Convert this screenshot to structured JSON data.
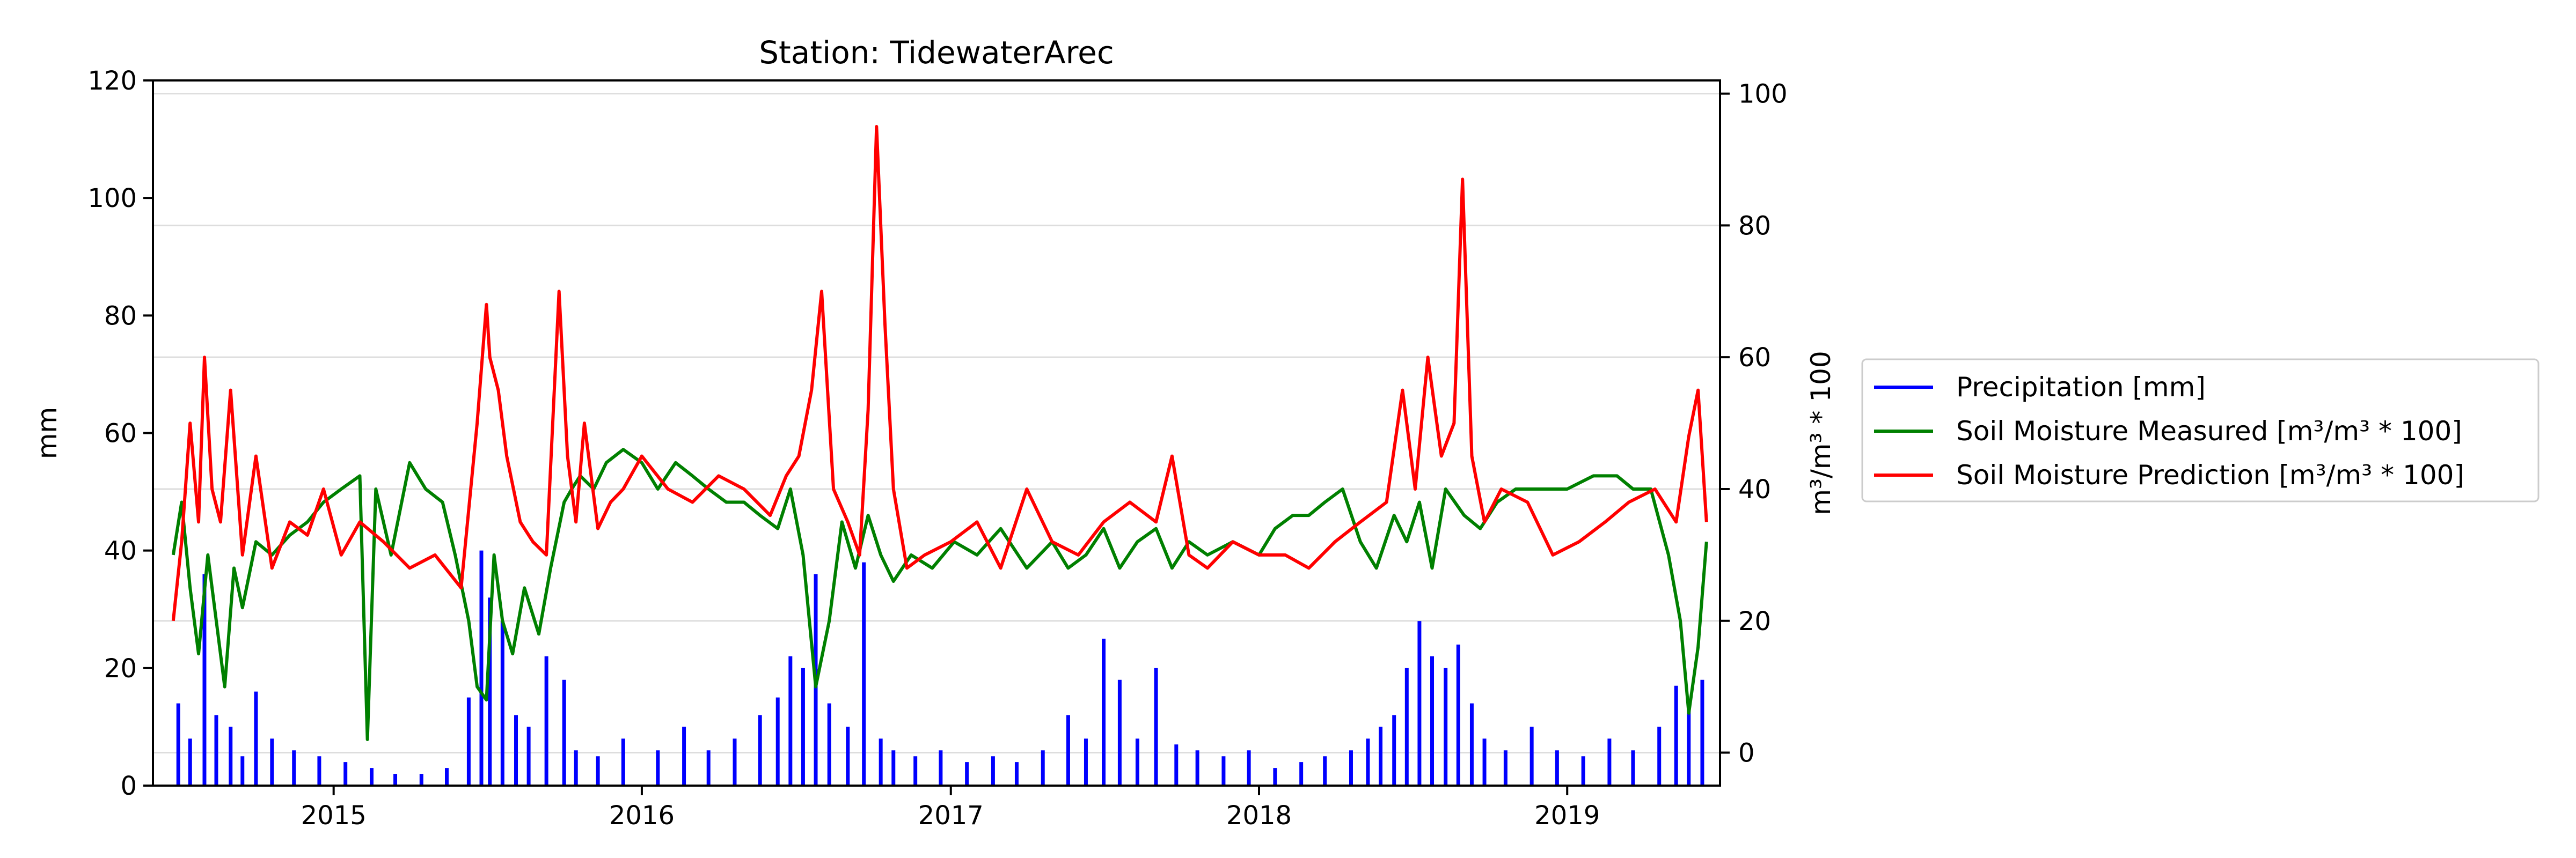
{
  "chart_data": {
    "type": "line",
    "title": "Station: TidewaterArec",
    "xlabel": "",
    "ylabel_left": "mm",
    "ylabel_right": "m³/m³ * 100",
    "x_ticks": [
      "2015",
      "2016",
      "2017",
      "2018",
      "2019"
    ],
    "x_range": [
      "2014-06-01",
      "2019-07-01"
    ],
    "ylim_left": [
      0,
      120
    ],
    "yticks_left": [
      0,
      20,
      40,
      60,
      80,
      100,
      120
    ],
    "ylim_right": [
      -5,
      102
    ],
    "yticks_right": [
      0,
      20,
      40,
      60,
      80,
      100
    ],
    "grid": "horizontal, right axis",
    "legend_position": "outside right",
    "series": [
      {
        "name": "Precipitation [mm]",
        "axis": "left",
        "style": "bars",
        "color": "#0000ff",
        "x": [
          "2014-07-01",
          "2014-07-15",
          "2014-08-01",
          "2014-08-15",
          "2014-09-01",
          "2014-09-15",
          "2014-10-01",
          "2014-10-20",
          "2014-11-15",
          "2014-12-15",
          "2015-01-15",
          "2015-02-15",
          "2015-03-15",
          "2015-04-15",
          "2015-05-15",
          "2015-06-10",
          "2015-06-25",
          "2015-07-05",
          "2015-07-20",
          "2015-08-05",
          "2015-08-20",
          "2015-09-10",
          "2015-10-01",
          "2015-10-15",
          "2015-11-10",
          "2015-12-10",
          "2016-01-20",
          "2016-02-20",
          "2016-03-20",
          "2016-04-20",
          "2016-05-20",
          "2016-06-10",
          "2016-06-25",
          "2016-07-10",
          "2016-07-25",
          "2016-08-10",
          "2016-09-01",
          "2016-09-20",
          "2016-10-10",
          "2016-10-25",
          "2016-11-20",
          "2016-12-20",
          "2017-01-20",
          "2017-02-20",
          "2017-03-20",
          "2017-04-20",
          "2017-05-20",
          "2017-06-10",
          "2017-07-01",
          "2017-07-20",
          "2017-08-10",
          "2017-09-01",
          "2017-09-25",
          "2017-10-20",
          "2017-11-20",
          "2017-12-20",
          "2018-01-20",
          "2018-02-20",
          "2018-03-20",
          "2018-04-20",
          "2018-05-10",
          "2018-05-25",
          "2018-06-10",
          "2018-06-25",
          "2018-07-10",
          "2018-07-25",
          "2018-08-10",
          "2018-08-25",
          "2018-09-10",
          "2018-09-25",
          "2018-10-20",
          "2018-11-20",
          "2018-12-20",
          "2019-01-20",
          "2019-02-20",
          "2019-03-20",
          "2019-04-20",
          "2019-05-10",
          "2019-05-25",
          "2019-06-10"
        ],
        "values": [
          14,
          8,
          36,
          12,
          10,
          5,
          16,
          8,
          6,
          5,
          4,
          3,
          2,
          2,
          3,
          15,
          40,
          32,
          28,
          12,
          10,
          22,
          18,
          6,
          5,
          8,
          6,
          10,
          6,
          8,
          12,
          15,
          22,
          20,
          36,
          14,
          10,
          38,
          8,
          6,
          5,
          6,
          4,
          5,
          4,
          6,
          12,
          8,
          25,
          18,
          8,
          20,
          7,
          6,
          5,
          6,
          3,
          4,
          5,
          6,
          8,
          10,
          12,
          20,
          28,
          22,
          20,
          24,
          14,
          8,
          6,
          10,
          6,
          5,
          8,
          6,
          10,
          17,
          14,
          18
        ]
      },
      {
        "name": "Soil Moisture Measured [m³/m³ * 100]",
        "axis": "right",
        "color": "#008000",
        "x": [
          "2014-06-25",
          "2014-07-05",
          "2014-07-15",
          "2014-07-25",
          "2014-08-05",
          "2014-08-15",
          "2014-08-25",
          "2014-09-05",
          "2014-09-15",
          "2014-10-01",
          "2014-10-20",
          "2014-11-10",
          "2014-12-01",
          "2014-12-20",
          "2015-01-10",
          "2015-02-01",
          "2015-02-10",
          "2015-02-20",
          "2015-03-10",
          "2015-04-01",
          "2015-04-20",
          "2015-05-10",
          "2015-05-25",
          "2015-06-10",
          "2015-06-20",
          "2015-07-01",
          "2015-07-10",
          "2015-07-20",
          "2015-08-01",
          "2015-08-15",
          "2015-09-01",
          "2015-09-15",
          "2015-10-01",
          "2015-10-10",
          "2015-10-20",
          "2015-11-05",
          "2015-11-20",
          "2015-12-10",
          "2016-01-01",
          "2016-01-20",
          "2016-02-10",
          "2016-03-01",
          "2016-03-20",
          "2016-04-10",
          "2016-05-01",
          "2016-05-20",
          "2016-06-10",
          "2016-06-25",
          "2016-07-10",
          "2016-07-25",
          "2016-08-10",
          "2016-08-25",
          "2016-09-10",
          "2016-09-25",
          "2016-10-10",
          "2016-10-25",
          "2016-11-15",
          "2016-12-10",
          "2017-01-05",
          "2017-02-01",
          "2017-03-01",
          "2017-04-01",
          "2017-05-01",
          "2017-05-20",
          "2017-06-10",
          "2017-07-01",
          "2017-07-20",
          "2017-08-10",
          "2017-09-01",
          "2017-09-20",
          "2017-10-10",
          "2017-11-01",
          "2017-12-01",
          "2018-01-01",
          "2018-01-20",
          "2018-02-10",
          "2018-03-01",
          "2018-03-20",
          "2018-04-10",
          "2018-05-01",
          "2018-05-20",
          "2018-06-10",
          "2018-06-25",
          "2018-07-10",
          "2018-07-25",
          "2018-08-10",
          "2018-09-01",
          "2018-09-20",
          "2018-10-10",
          "2018-11-01",
          "2018-12-01",
          "2019-01-01",
          "2019-02-01",
          "2019-03-01",
          "2019-03-20",
          "2019-04-10",
          "2019-05-01",
          "2019-05-15",
          "2019-05-25",
          "2019-06-05",
          "2019-06-15"
        ],
        "values": [
          30,
          38,
          25,
          15,
          30,
          20,
          10,
          28,
          22,
          32,
          30,
          33,
          35,
          38,
          40,
          42,
          2,
          40,
          30,
          44,
          40,
          38,
          30,
          20,
          10,
          8,
          30,
          20,
          15,
          25,
          18,
          28,
          38,
          40,
          42,
          40,
          44,
          46,
          44,
          40,
          44,
          42,
          40,
          38,
          38,
          36,
          34,
          40,
          30,
          10,
          20,
          35,
          28,
          36,
          30,
          26,
          30,
          28,
          32,
          30,
          34,
          28,
          32,
          28,
          30,
          34,
          28,
          32,
          34,
          28,
          32,
          30,
          32,
          30,
          34,
          36,
          36,
          38,
          40,
          32,
          28,
          36,
          32,
          38,
          28,
          40,
          36,
          34,
          38,
          40,
          40,
          40,
          42,
          42,
          40,
          40,
          30,
          20,
          6,
          16,
          32
        ]
      },
      {
        "name": "Soil Moisture Prediction [m³/m³ * 100]",
        "axis": "right",
        "color": "#ff0000",
        "x": [
          "2014-06-25",
          "2014-07-05",
          "2014-07-15",
          "2014-07-25",
          "2014-08-01",
          "2014-08-10",
          "2014-08-20",
          "2014-09-01",
          "2014-09-15",
          "2014-10-01",
          "2014-10-20",
          "2014-11-10",
          "2014-12-01",
          "2014-12-20",
          "2015-01-10",
          "2015-02-01",
          "2015-03-01",
          "2015-04-01",
          "2015-05-01",
          "2015-06-01",
          "2015-06-20",
          "2015-07-01",
          "2015-07-05",
          "2015-07-15",
          "2015-07-25",
          "2015-08-10",
          "2015-08-25",
          "2015-09-10",
          "2015-09-25",
          "2015-10-05",
          "2015-10-15",
          "2015-10-25",
          "2015-11-10",
          "2015-11-25",
          "2015-12-10",
          "2016-01-01",
          "2016-02-01",
          "2016-03-01",
          "2016-04-01",
          "2016-05-01",
          "2016-06-01",
          "2016-06-20",
          "2016-07-05",
          "2016-07-20",
          "2016-08-01",
          "2016-08-15",
          "2016-09-01",
          "2016-09-15",
          "2016-09-25",
          "2016-10-05",
          "2016-10-15",
          "2016-10-25",
          "2016-11-10",
          "2016-12-01",
          "2017-01-01",
          "2017-02-01",
          "2017-03-01",
          "2017-04-01",
          "2017-05-01",
          "2017-06-01",
          "2017-07-01",
          "2017-08-01",
          "2017-09-01",
          "2017-09-20",
          "2017-10-10",
          "2017-11-01",
          "2017-12-01",
          "2018-01-01",
          "2018-02-01",
          "2018-03-01",
          "2018-04-01",
          "2018-05-01",
          "2018-06-01",
          "2018-06-20",
          "2018-07-05",
          "2018-07-20",
          "2018-08-05",
          "2018-08-20",
          "2018-08-30",
          "2018-09-10",
          "2018-09-25",
          "2018-10-15",
          "2018-11-15",
          "2018-12-15",
          "2019-01-15",
          "2019-02-15",
          "2019-03-15",
          "2019-04-15",
          "2019-05-10",
          "2019-05-25",
          "2019-06-05",
          "2019-06-15"
        ],
        "values": [
          20,
          32,
          50,
          35,
          60,
          40,
          35,
          55,
          30,
          45,
          28,
          35,
          33,
          40,
          30,
          35,
          32,
          28,
          30,
          25,
          50,
          68,
          60,
          55,
          45,
          35,
          32,
          30,
          70,
          45,
          35,
          50,
          34,
          38,
          40,
          45,
          40,
          38,
          42,
          40,
          36,
          42,
          45,
          55,
          70,
          40,
          35,
          30,
          52,
          95,
          65,
          40,
          28,
          30,
          32,
          35,
          28,
          40,
          32,
          30,
          35,
          38,
          35,
          45,
          30,
          28,
          32,
          30,
          30,
          28,
          32,
          35,
          38,
          55,
          40,
          60,
          45,
          50,
          87,
          45,
          35,
          40,
          38,
          30,
          32,
          35,
          38,
          40,
          35,
          48,
          55,
          35
        ]
      }
    ]
  }
}
